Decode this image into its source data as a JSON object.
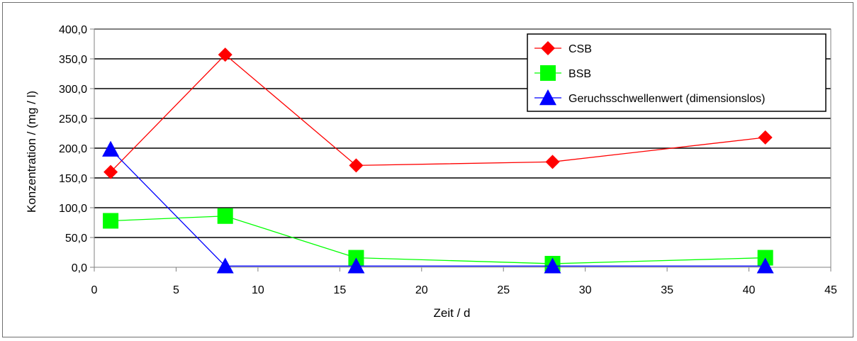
{
  "chart_data": {
    "type": "line",
    "xlabel": "Zeit / d",
    "ylabel": "Konzentration / (mg / l)",
    "xlim": [
      0,
      45
    ],
    "ylim": [
      0,
      400
    ],
    "x_ticks": [
      "0",
      "5",
      "10",
      "15",
      "20",
      "25",
      "30",
      "35",
      "40",
      "45"
    ],
    "y_ticks": [
      "0,0",
      "50,0",
      "100,0",
      "150,0",
      "200,0",
      "250,0",
      "300,0",
      "350,0",
      "400,0"
    ],
    "grid": "horizontal",
    "legend_position": "top-right",
    "series": [
      {
        "name": "CSB",
        "color": "#ff0000",
        "marker": "diamond",
        "x": [
          1,
          8,
          16,
          28,
          41
        ],
        "y": [
          160,
          357,
          171,
          177,
          218
        ]
      },
      {
        "name": "BSB",
        "color": "#00ff00",
        "marker": "square",
        "x": [
          1,
          8,
          16,
          28,
          41
        ],
        "y": [
          78,
          86,
          16,
          6,
          16
        ]
      },
      {
        "name": "Geruchsschwellenwert (dimensionslos)",
        "color": "#0000ff",
        "marker": "triangle",
        "x": [
          1,
          8,
          16,
          28,
          41
        ],
        "y": [
          198,
          2,
          2,
          2,
          2
        ]
      }
    ]
  }
}
